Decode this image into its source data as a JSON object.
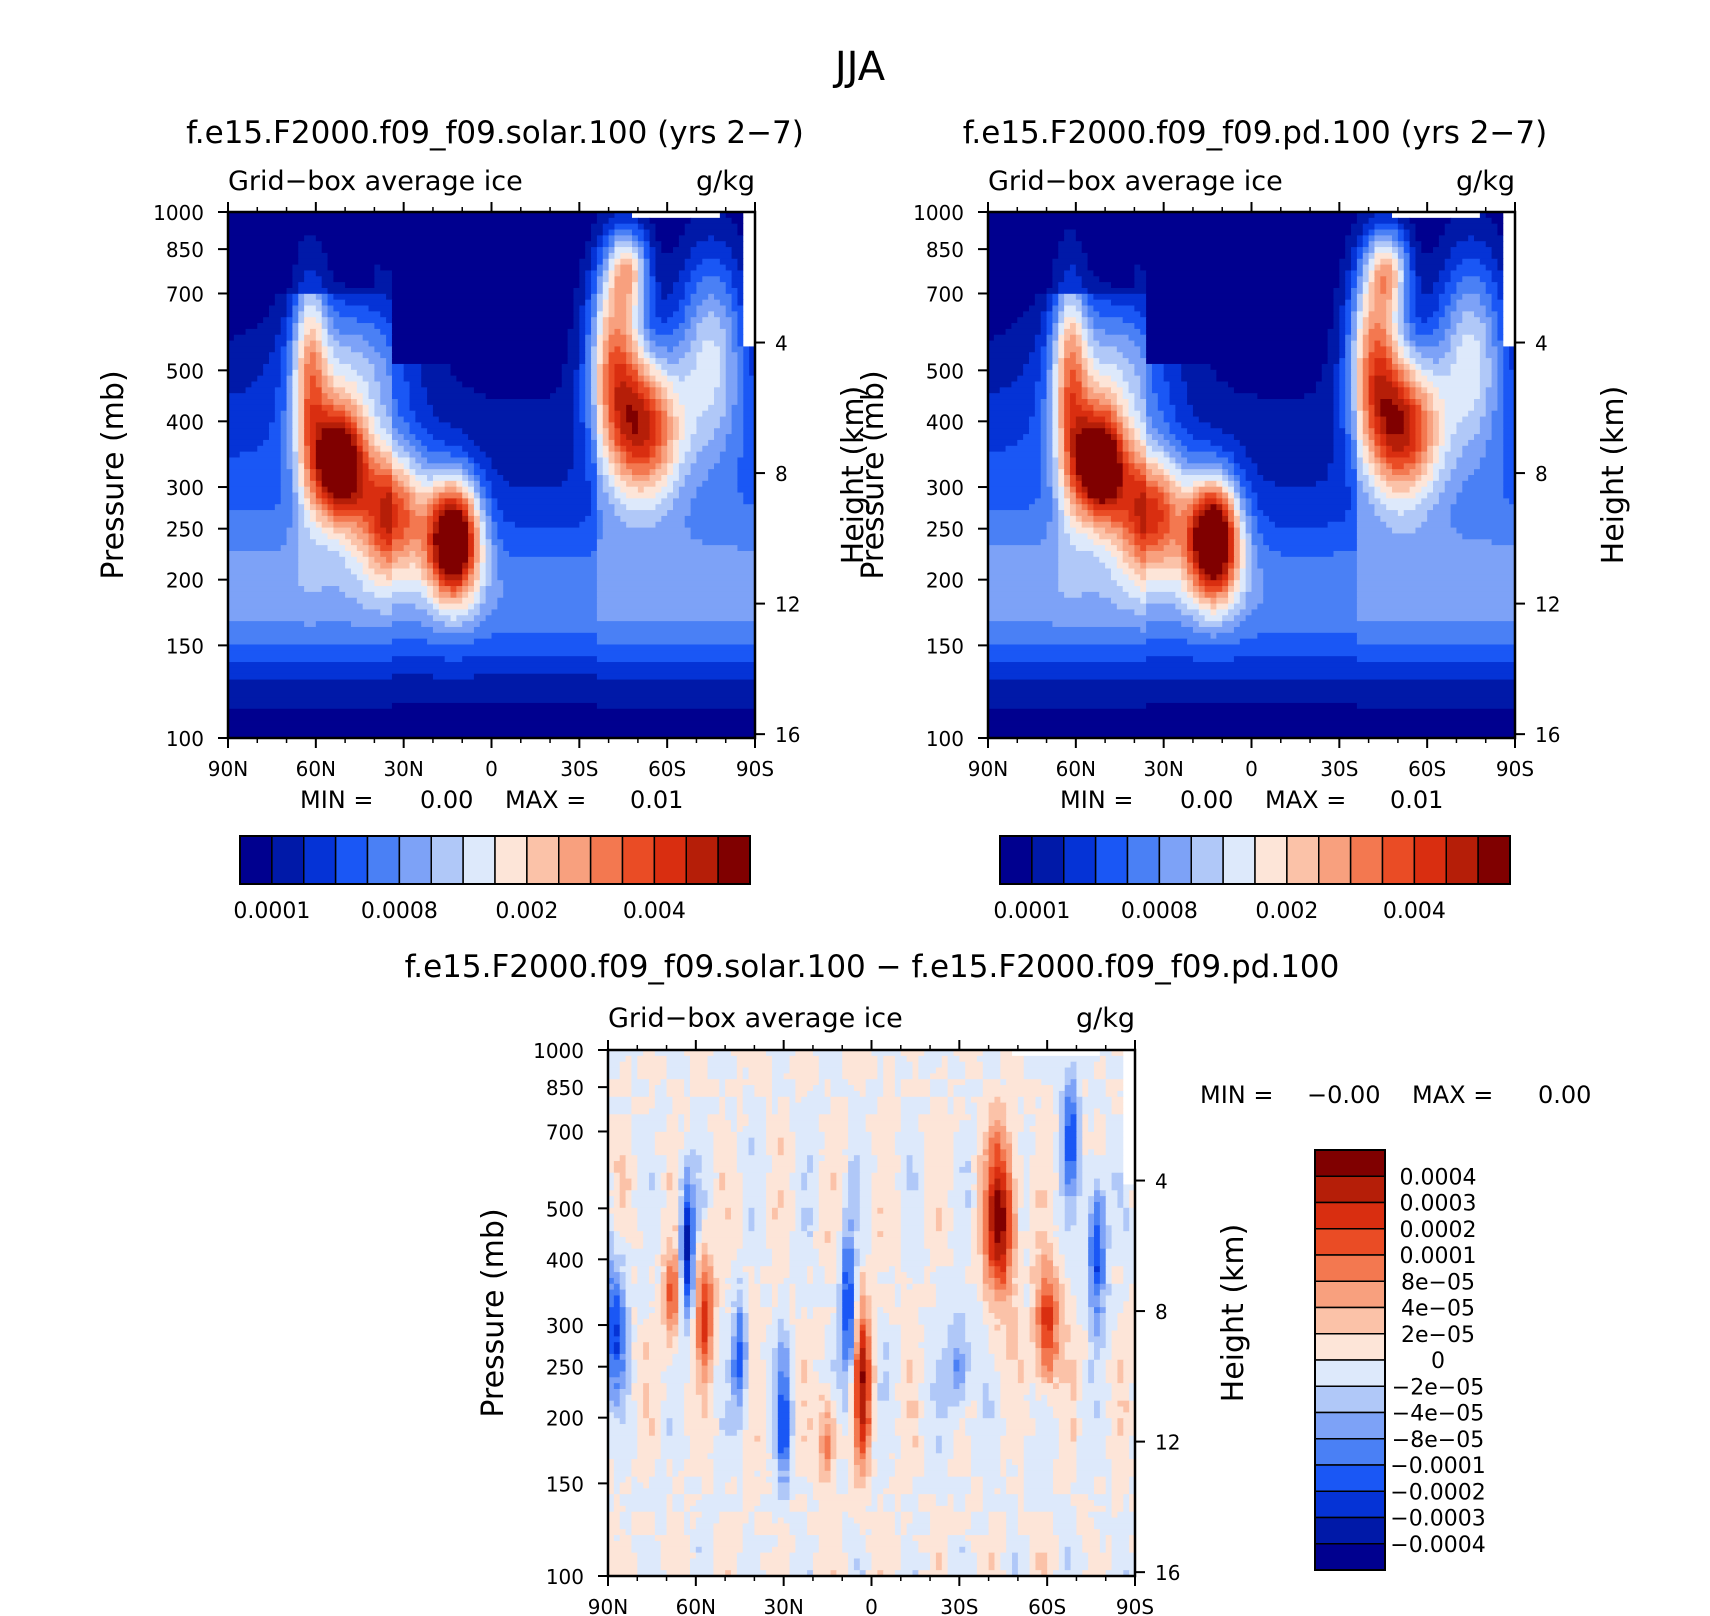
{
  "page_title": "JJA",
  "colors": {
    "seq": [
      "#00008f",
      "#0019a8",
      "#0533d6",
      "#1a57f5",
      "#4a80f5",
      "#7da2f7",
      "#b0c8f8",
      "#dde9fb",
      "#fde5d8",
      "#fbc2a8",
      "#f8a07e",
      "#f37850",
      "#ea4c25",
      "#d92e10",
      "#b51e08",
      "#800000"
    ],
    "diff": [
      "#00008f",
      "#0019a8",
      "#0533d6",
      "#1a57f5",
      "#4a80f5",
      "#7da2f7",
      "#b0c8f8",
      "#dde9fb",
      "#fde5d8",
      "#fbc2a8",
      "#f8a07e",
      "#f37850",
      "#ea4c25",
      "#d92e10",
      "#b51e08",
      "#800000"
    ]
  },
  "chart_data": [
    {
      "type": "heatmap",
      "title": "f.e15.F2000.f09_f09.solar.100 (yrs 2−7)",
      "subtitle_left": "Grid−box average ice",
      "subtitle_right": "g/kg",
      "xlabel": "",
      "ylabel": "Pressure (mb)",
      "ylabel_right": "Height (km)",
      "x_ticks": [
        "90N",
        "60N",
        "30N",
        "0",
        "30S",
        "60S",
        "90S"
      ],
      "x_range": [
        90,
        -90
      ],
      "y_ticks": [
        100,
        150,
        200,
        250,
        300,
        400,
        500,
        700,
        850,
        1000
      ],
      "y_range": [
        1000,
        100
      ],
      "y_scale": "log",
      "right_ticks": [
        16,
        12,
        8,
        4
      ],
      "min_max": {
        "min_label": "MIN =",
        "min": "0.00",
        "max_label": "MAX =",
        "max": "0.01"
      },
      "colorbar": {
        "orientation": "horizontal",
        "labels": [
          "0.0001",
          "0.0008",
          "0.002",
          "0.004"
        ],
        "levels": 16
      },
      "features": [
        {
          "desc": "northern upper-tropospheric maximum",
          "lat": 12,
          "p": 230,
          "level": 15
        },
        {
          "desc": "midlatitude maximum",
          "lat": 53,
          "p": 330,
          "level": 14
        },
        {
          "desc": "southern midlatitude maximum",
          "lat": -50,
          "p": 380,
          "level": 11
        }
      ]
    },
    {
      "type": "heatmap",
      "title": "f.e15.F2000.f09_f09.pd.100 (yrs 2−7)",
      "subtitle_left": "Grid−box average ice",
      "subtitle_right": "g/kg",
      "xlabel": "",
      "ylabel": "Pressure (mb)",
      "ylabel_right": "Height (km)",
      "x_ticks": [
        "90N",
        "60N",
        "30N",
        "0",
        "30S",
        "60S",
        "90S"
      ],
      "x_range": [
        90,
        -90
      ],
      "y_ticks": [
        100,
        150,
        200,
        250,
        300,
        400,
        500,
        700,
        850,
        1000
      ],
      "y_range": [
        1000,
        100
      ],
      "y_scale": "log",
      "right_ticks": [
        16,
        12,
        8,
        4
      ],
      "min_max": {
        "min_label": "MIN =",
        "min": "0.00",
        "max_label": "MAX =",
        "max": "0.01"
      },
      "colorbar": {
        "orientation": "horizontal",
        "labels": [
          "0.0001",
          "0.0008",
          "0.002",
          "0.004"
        ],
        "levels": 16
      },
      "features": [
        {
          "desc": "northern upper-tropospheric maximum",
          "lat": 12,
          "p": 230,
          "level": 15
        },
        {
          "desc": "midlatitude maximum",
          "lat": 53,
          "p": 330,
          "level": 14
        },
        {
          "desc": "southern midlatitude maximum",
          "lat": -50,
          "p": 380,
          "level": 11
        }
      ]
    },
    {
      "type": "heatmap",
      "title": "f.e15.F2000.f09_f09.solar.100 − f.e15.F2000.f09_f09.pd.100",
      "subtitle_left": "Grid−box average ice",
      "subtitle_right": "g/kg",
      "xlabel": "",
      "ylabel": "Pressure (mb)",
      "ylabel_right": "Height (km)",
      "x_ticks": [
        "90N",
        "60N",
        "30N",
        "0",
        "30S",
        "60S",
        "90S"
      ],
      "x_range": [
        90,
        -90
      ],
      "y_ticks": [
        100,
        150,
        200,
        250,
        300,
        400,
        500,
        700,
        850,
        1000
      ],
      "y_range": [
        1000,
        100
      ],
      "y_scale": "log",
      "right_ticks": [
        16,
        12,
        8,
        4
      ],
      "min_max": {
        "min_label": "MIN =",
        "min": "−0.00",
        "max_label": "MAX =",
        "max": "0.00"
      },
      "colorbar": {
        "orientation": "vertical",
        "labels": [
          "0.0004",
          "0.0003",
          "0.0002",
          "0.0001",
          "8e−05",
          "4e−05",
          "2e−05",
          "0",
          "−2e−05",
          "−4e−05",
          "−8e−05",
          "−0.0001",
          "−0.0002",
          "−0.0003",
          "−0.0004"
        ],
        "levels": 16
      }
    }
  ]
}
